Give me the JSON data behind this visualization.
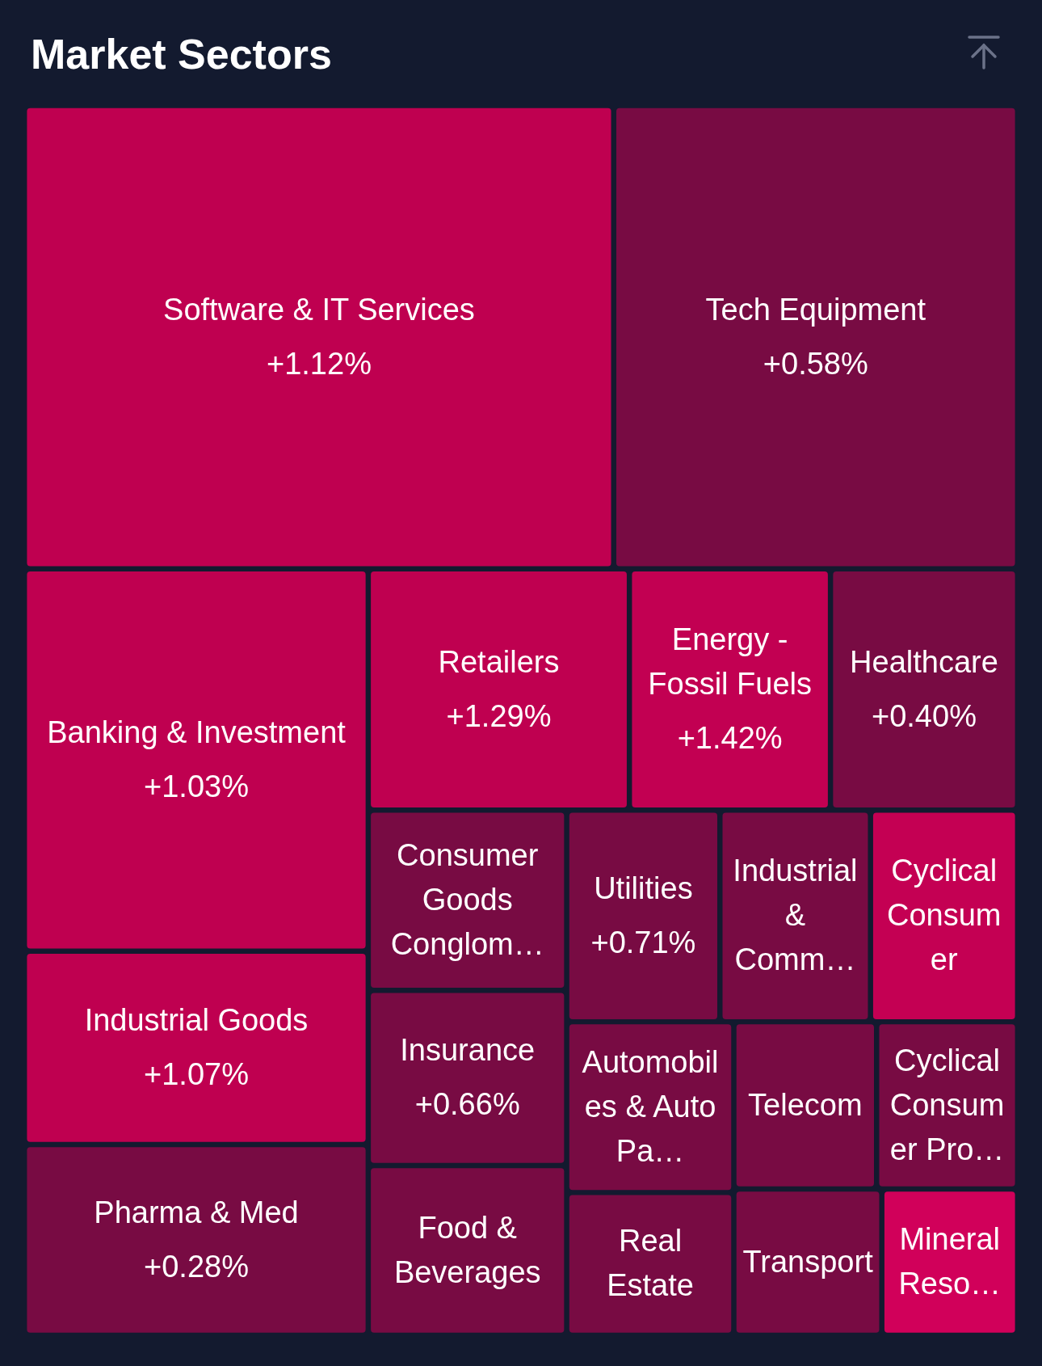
{
  "chart_data": {
    "type": "other",
    "title": "Market Sectors",
    "categories": [
      "Software & IT Services",
      "Tech Equipment",
      "Banking & Investment",
      "Industrial Goods",
      "Pharma & Med",
      "Retailers",
      "Energy - Fossil Fuels",
      "Healthcare",
      "Consumer Goods Conglom…",
      "Insurance",
      "Food & Beverages",
      "Utilities",
      "Industrial & Comm…",
      "Cyclical Consumer",
      "Automobiles & Auto Pa…",
      "Telecom",
      "Cyclical Consumer Pro…",
      "Real Estate",
      "Transport",
      "Mineral Reso…"
    ],
    "values": [
      1.12,
      0.58,
      1.03,
      1.07,
      0.28,
      1.29,
      1.42,
      0.4,
      null,
      0.66,
      null,
      0.71,
      null,
      null,
      null,
      null,
      null,
      null,
      null,
      null
    ],
    "value_labels": [
      "+1.12%",
      "+0.58%",
      "+1.03%",
      "+1.07%",
      "+0.28%",
      "+1.29%",
      "+1.42%",
      "+0.40%",
      null,
      "+0.66%",
      null,
      "+0.71%",
      null,
      null,
      null,
      null,
      null,
      null,
      null,
      null
    ],
    "colors": [
      "#bf0050",
      "#780b43",
      "#bf0050",
      "#bf0050",
      "#780b43",
      "#bf0050",
      "#c20052",
      "#780b43",
      "#780b43",
      "#780b43",
      "#780b43",
      "#780b43",
      "#780b43",
      "#c40053",
      "#780b43",
      "#780b43",
      "#780b43",
      "#780b43",
      "#780b43",
      "#d1005a"
    ]
  }
}
